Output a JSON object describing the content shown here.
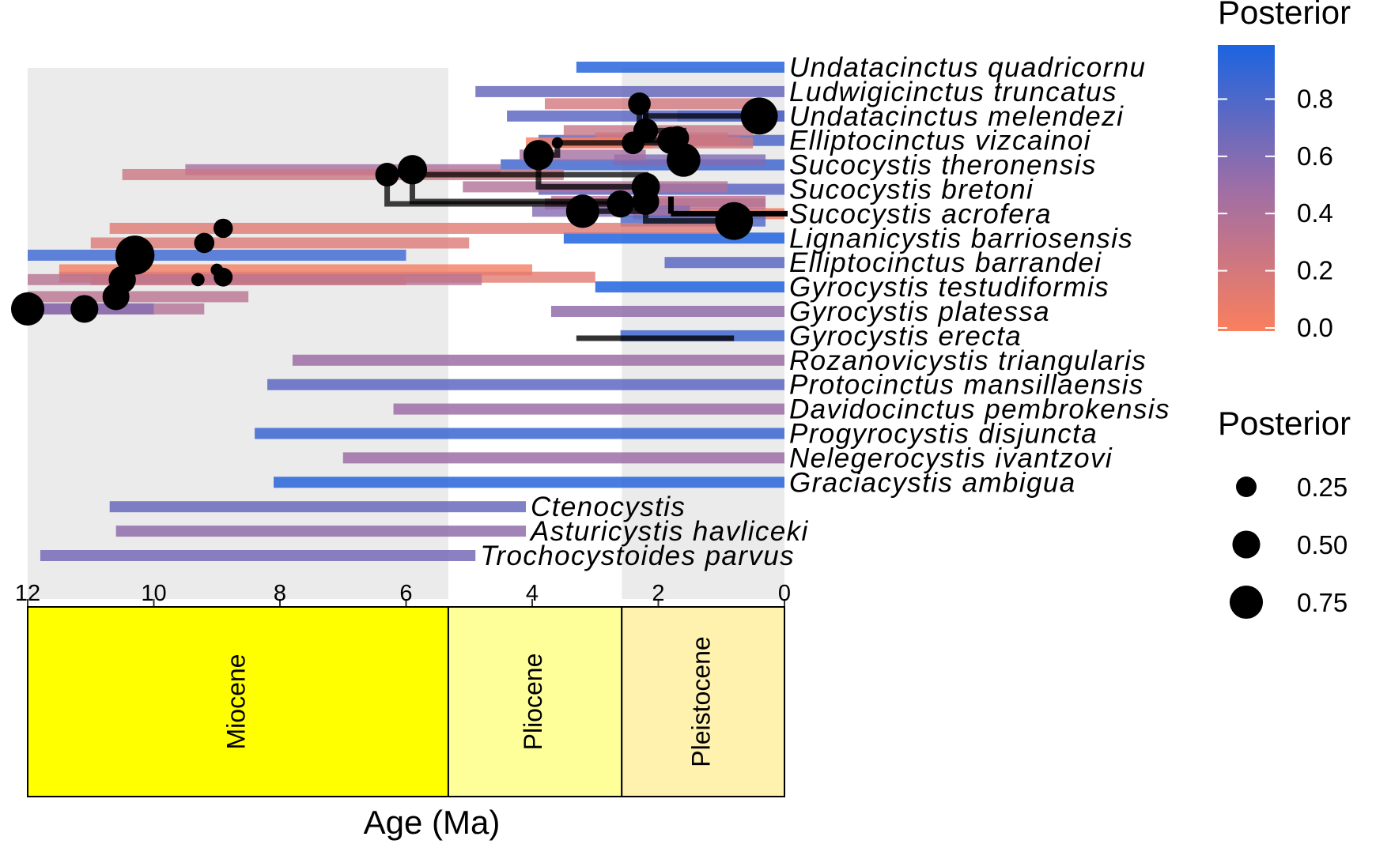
{
  "chart_data": {
    "type": "phylogeny",
    "xlabel": "Age (Ma)",
    "xlim": [
      12,
      0
    ],
    "x_ticks": [
      12,
      10,
      8,
      6,
      4,
      2,
      0
    ],
    "epochs": [
      {
        "name": "Miocene",
        "start": 12,
        "end": 5.33,
        "color": "#FFFF00"
      },
      {
        "name": "Pliocene",
        "start": 5.33,
        "end": 2.58,
        "color": "#FFFF99"
      },
      {
        "name": "Pleistocene",
        "start": 2.58,
        "end": 0,
        "color": "#FFF2AE"
      }
    ],
    "tips": [
      {
        "name": "Undatacinctus quadricornu",
        "age": 0
      },
      {
        "name": "Ludwigicinctus truncatus",
        "age": 0
      },
      {
        "name": "Undatacinctus melendezi",
        "age": 0
      },
      {
        "name": "Elliptocinctus vizcainoi",
        "age": 0
      },
      {
        "name": "Sucocystis theronensis",
        "age": 0
      },
      {
        "name": "Sucocystis bretoni",
        "age": 0
      },
      {
        "name": "Sucocystis acrofera",
        "age": 0
      },
      {
        "name": "Lignanicystis barriosensis",
        "age": 0
      },
      {
        "name": "Elliptocinctus barrandei",
        "age": 0
      },
      {
        "name": "Gyrocystis testudiformis",
        "age": 0
      },
      {
        "name": "Gyrocystis platessa",
        "age": 0
      },
      {
        "name": "Gyrocystis erecta",
        "age": 0
      },
      {
        "name": "Rozanovicystis triangularis",
        "age": 0
      },
      {
        "name": "Protocinctus mansillaensis",
        "age": 0
      },
      {
        "name": "Davidocinctus pembrokensis",
        "age": 0
      },
      {
        "name": "Progyrocystis disjuncta",
        "age": 0
      },
      {
        "name": "Nelegerocystis ivantzovi",
        "age": 0
      },
      {
        "name": "Graciacystis ambigua",
        "age": 0
      },
      {
        "name": "Ctenocystis",
        "age": 4.1
      },
      {
        "name": "Asturicystis havliceki",
        "age": 4.1
      },
      {
        "name": "Trochocystoides parvus",
        "age": 4.9
      }
    ],
    "nodes": [
      {
        "y": 3.8,
        "age": 1.6,
        "posterior": 0.62,
        "hpd": [
          0.3,
          2.7
        ]
      },
      {
        "y": 2.6,
        "age": 2.2,
        "posterior": 0.28,
        "hpd": [
          0.5,
          3.5
        ]
      },
      {
        "y": 2.0,
        "age": 0.4,
        "posterior": 0.78,
        "hpd": [
          0,
          1.7
        ]
      },
      {
        "y": 1.5,
        "age": 2.3,
        "posterior": 0.22,
        "hpd": [
          0.4,
          3.8
        ]
      },
      {
        "y": 3.0,
        "age": 1.8,
        "posterior": 0.36,
        "hpd": [
          0.7,
          3.0
        ]
      },
      {
        "y": 3.1,
        "age": 2.4,
        "posterior": 0.22,
        "hpd": [
          0.5,
          3.6
        ]
      },
      {
        "y": 2.9,
        "age": 1.7,
        "posterior": 0.25,
        "hpd": [
          0.9,
          3.0
        ]
      },
      {
        "y": 3.1,
        "age": 3.6,
        "posterior": 0.02,
        "hpd": [
          2.1,
          4.1
        ]
      },
      {
        "y": 3.6,
        "age": 3.9,
        "posterior": 0.47,
        "hpd": [
          2.2,
          4.2
        ]
      },
      {
        "y": 4.9,
        "age": 2.2,
        "posterior": 0.4,
        "hpd": [
          0.9,
          5.1
        ]
      },
      {
        "y": 4.2,
        "age": 5.9,
        "posterior": 0.44,
        "hpd": [
          4.5,
          9.5
        ]
      },
      {
        "y": 4.4,
        "age": 6.3,
        "posterior": 0.25,
        "hpd": [
          3.5,
          10.5
        ]
      },
      {
        "y": 5.5,
        "age": 2.2,
        "posterior": 0.35,
        "hpd": [
          0.3,
          3.7
        ]
      },
      {
        "y": 5.6,
        "age": 2.6,
        "posterior": 0.36,
        "hpd": [
          0.3,
          3.8
        ]
      },
      {
        "y": 5.9,
        "age": 3.2,
        "posterior": 0.6,
        "hpd": [
          1.5,
          4.0
        ]
      },
      {
        "y": 6.3,
        "age": 0.8,
        "posterior": 0.82,
        "hpd": [
          0.3,
          2.6
        ]
      },
      {
        "y": 6.6,
        "age": 8.9,
        "posterior": 0.14,
        "hpd": [
          1.0,
          10.7
        ]
      },
      {
        "y": 7.2,
        "age": 9.2,
        "posterior": 0.16,
        "hpd": [
          5.0,
          11.0
        ]
      },
      {
        "y": 7.7,
        "age": 10.3,
        "posterior": 0.89,
        "hpd": [
          6.0,
          12.0
        ]
      },
      {
        "y": 8.3,
        "age": 9.0,
        "posterior": 0.03,
        "hpd": [
          4.0,
          11.5
        ]
      },
      {
        "y": 8.6,
        "age": 8.9,
        "posterior": 0.13,
        "hpd": [
          3.0,
          11.5
        ]
      },
      {
        "y": 8.7,
        "age": 9.3,
        "posterior": 0.04,
        "hpd": [
          6.0,
          11.0
        ]
      },
      {
        "y": 8.7,
        "age": 10.5,
        "posterior": 0.36,
        "hpd": [
          4.8,
          12.0
        ]
      },
      {
        "y": 9.4,
        "age": 10.6,
        "posterior": 0.35,
        "hpd": [
          8.5,
          12.0
        ]
      },
      {
        "y": 9.9,
        "age": 11.1,
        "posterior": 0.38,
        "hpd": [
          9.2,
          12.0
        ]
      },
      {
        "y": 9.9,
        "age": 12.0,
        "posterior": 0.6,
        "hpd": [
          10.0,
          12.0
        ]
      }
    ],
    "legend_color": {
      "title": "Posterior",
      "ticks": [
        "0.0",
        "0.2",
        "0.4",
        "0.6",
        "0.8"
      ],
      "low": "#FA7F5E",
      "mid": "#9E6EA6",
      "high": "#1C64E0"
    },
    "legend_size": {
      "title": "Posterior",
      "labels": [
        "0.25",
        "0.50",
        "0.75"
      ],
      "values": [
        0.25,
        0.5,
        0.75
      ]
    }
  }
}
